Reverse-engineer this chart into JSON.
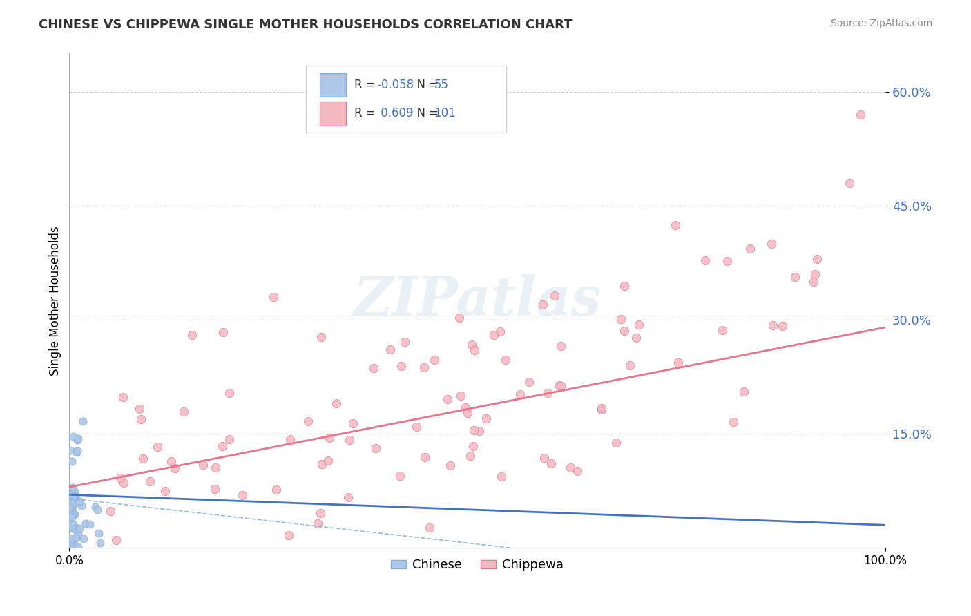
{
  "title": "CHINESE VS CHIPPEWA SINGLE MOTHER HOUSEHOLDS CORRELATION CHART",
  "source": "Source: ZipAtlas.com",
  "ylabel": "Single Mother Households",
  "xlim": [
    0.0,
    1.0
  ],
  "ylim": [
    0.0,
    0.65
  ],
  "xtick_positions": [
    0.0,
    1.0
  ],
  "xtick_labels": [
    "0.0%",
    "100.0%"
  ],
  "ytick_vals": [
    0.15,
    0.3,
    0.45,
    0.6
  ],
  "ytick_labels": [
    "15.0%",
    "30.0%",
    "45.0%",
    "60.0%"
  ],
  "chinese_R": -0.058,
  "chinese_N": 55,
  "chippewa_R": 0.609,
  "chippewa_N": 101,
  "chinese_dot_color": "#aec6e8",
  "chinese_edge_color": "#7dadd4",
  "chippewa_dot_color": "#f4b8c1",
  "chippewa_edge_color": "#e8738a",
  "chinese_line_color": "#4472c4",
  "chippewa_line_color": "#e8738a",
  "watermark_color": "#dce8f0",
  "grid_color": "#bbbbbb",
  "background_color": "#ffffff",
  "title_color": "#333333",
  "source_color": "#888888",
  "ytick_color": "#4472c4",
  "legend_R_color": "#4472c4"
}
